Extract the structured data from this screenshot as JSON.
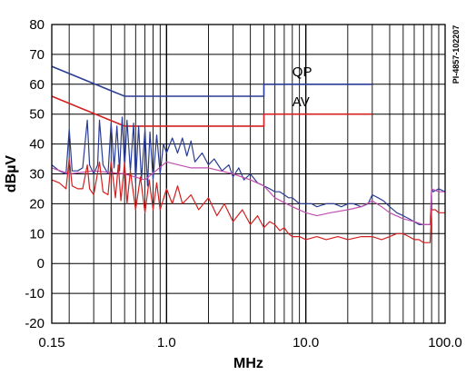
{
  "chart_data": {
    "type": "line",
    "title": "",
    "xlabel": "MHz",
    "ylabel": "dBµV",
    "x_scale": "log",
    "xlim": [
      0.15,
      100.0
    ],
    "ylim": [
      -20,
      80
    ],
    "x_ticks": [
      "0.15",
      "1.0",
      "10.0",
      "100.0"
    ],
    "y_ticks": [
      "-20",
      "-10",
      "0",
      "10",
      "20",
      "30",
      "40",
      "50",
      "60",
      "70",
      "80"
    ],
    "grid": true,
    "annotations": [
      "QP",
      "AV"
    ],
    "side_note": "PI-4857-102207",
    "colors": {
      "blue": "#2a3c94",
      "red": "#d42020",
      "magenta": "#c050b0",
      "grid": "#000000"
    },
    "limit_lines": [
      {
        "label": "QP",
        "color": "#2a3c94",
        "x": [
          0.15,
          0.5,
          0.5,
          5.0,
          5.0,
          30.0
        ],
        "y": [
          66,
          56,
          56,
          56,
          60,
          60
        ]
      },
      {
        "label": "AV",
        "color": "#d42020",
        "x": [
          0.15,
          0.5,
          0.5,
          5.0,
          5.0,
          30.0
        ],
        "y": [
          56,
          46,
          46,
          46,
          50,
          50
        ]
      }
    ],
    "series": [
      {
        "color": "#2a3c94",
        "x": [
          0.15,
          0.17,
          0.19,
          0.2,
          0.21,
          0.23,
          0.25,
          0.27,
          0.28,
          0.3,
          0.32,
          0.33,
          0.35,
          0.38,
          0.4,
          0.42,
          0.44,
          0.46,
          0.48,
          0.5,
          0.52,
          0.55,
          0.58,
          0.6,
          0.63,
          0.66,
          0.7,
          0.73,
          0.76,
          0.8,
          0.85,
          0.9,
          0.95,
          1.0,
          1.1,
          1.2,
          1.3,
          1.4,
          1.5,
          1.6,
          1.8,
          2.0,
          2.2,
          2.5,
          2.8,
          3.0,
          3.3,
          3.6,
          4.0,
          4.5,
          5.0,
          5.5,
          6.0,
          6.5,
          7.0,
          7.5,
          8.0,
          8.5,
          9.0,
          10,
          11,
          12,
          14,
          16,
          18,
          20,
          22,
          25,
          28,
          30,
          33,
          36,
          40,
          45,
          50,
          55,
          60,
          65,
          70,
          75,
          78,
          80,
          82,
          90,
          100
        ],
        "y": [
          33,
          31,
          30,
          45,
          31,
          31,
          32,
          48,
          33,
          30,
          33,
          48,
          33,
          30,
          47,
          32,
          46,
          31,
          49,
          32,
          48,
          31,
          47,
          27,
          46,
          28,
          45,
          26,
          44,
          28,
          43,
          30,
          40,
          37,
          42,
          37,
          42,
          36,
          41,
          34,
          37,
          33,
          35,
          31,
          33,
          29,
          32,
          28,
          30,
          27,
          26,
          25,
          24,
          24,
          23,
          22,
          22,
          21,
          20,
          20,
          20,
          19,
          20,
          20,
          19,
          20,
          20,
          19,
          20,
          23,
          22,
          21,
          19,
          17,
          16,
          15,
          14,
          13,
          13,
          13,
          13,
          25,
          24,
          25,
          24
        ]
      },
      {
        "color": "#c050b0",
        "x": [
          0.15,
          0.2,
          0.3,
          0.5,
          0.7,
          1.0,
          1.5,
          2.0,
          3.0,
          4.0,
          5.0,
          6.0,
          8.0,
          10,
          12,
          15,
          20,
          25,
          30,
          35,
          40,
          50,
          60,
          70,
          78,
          80,
          90,
          100
        ],
        "y": [
          32,
          30,
          31,
          30,
          28,
          34,
          32,
          32,
          30,
          28,
          26,
          22,
          19,
          17,
          16,
          17,
          18,
          19,
          21,
          19,
          17,
          15,
          14,
          13,
          13,
          25,
          24,
          24
        ]
      },
      {
        "color": "#d42020",
        "x": [
          0.15,
          0.17,
          0.19,
          0.2,
          0.21,
          0.23,
          0.25,
          0.27,
          0.28,
          0.3,
          0.33,
          0.35,
          0.38,
          0.4,
          0.43,
          0.45,
          0.47,
          0.5,
          0.52,
          0.55,
          0.6,
          0.65,
          0.7,
          0.75,
          0.8,
          0.85,
          0.9,
          1.0,
          1.1,
          1.2,
          1.3,
          1.5,
          1.7,
          2.0,
          2.3,
          2.6,
          3.0,
          3.5,
          4.0,
          4.5,
          5.0,
          5.5,
          6.0,
          6.5,
          7.0,
          7.5,
          8.0,
          9.0,
          10,
          12,
          14,
          17,
          20,
          25,
          30,
          35,
          40,
          45,
          50,
          55,
          60,
          65,
          70,
          75,
          78,
          80,
          85,
          90,
          100
        ],
        "y": [
          28,
          27,
          25,
          35,
          26,
          25,
          25,
          33,
          25,
          23,
          34,
          24,
          23,
          34,
          22,
          33,
          21,
          34,
          20,
          31,
          18,
          29,
          17,
          28,
          18,
          27,
          18,
          25,
          20,
          26,
          20,
          23,
          18,
          22,
          16,
          20,
          14,
          18,
          13,
          16,
          12,
          14,
          13,
          11,
          12,
          10,
          9,
          9,
          8,
          9,
          8,
          9,
          8,
          9,
          9,
          8,
          9,
          10,
          10,
          9,
          8,
          8,
          7,
          7,
          7,
          18,
          18,
          17,
          17
        ]
      }
    ]
  }
}
